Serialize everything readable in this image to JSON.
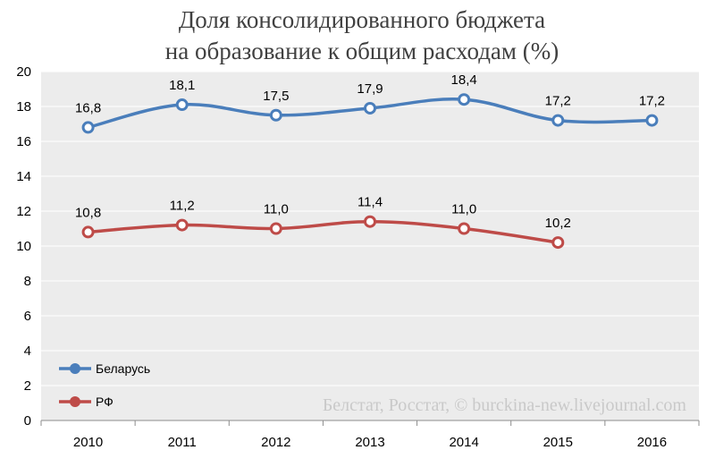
{
  "chart_data": {
    "type": "line",
    "title_lines": [
      "Доля консолидированного бюджета",
      "на образование к общим расходам (%)"
    ],
    "categories": [
      "2010",
      "2011",
      "2012",
      "2013",
      "2014",
      "2015",
      "2016"
    ],
    "series": [
      {
        "name": "Беларусь",
        "color": "#4A7EBB",
        "values": [
          16.8,
          18.1,
          17.5,
          17.9,
          18.4,
          17.2,
          17.2
        ],
        "labels": [
          "16,8",
          "18,1",
          "17,5",
          "17,9",
          "18,4",
          "17,2",
          "17,2"
        ]
      },
      {
        "name": "РФ",
        "color": "#BE4B48",
        "values": [
          10.8,
          11.2,
          11.0,
          11.4,
          11.0,
          10.2,
          null
        ],
        "labels": [
          "10,8",
          "11,2",
          "11,0",
          "11,4",
          "11,0",
          "10,2",
          null
        ]
      }
    ],
    "y_ticks": [
      "0",
      "2",
      "4",
      "6",
      "8",
      "10",
      "12",
      "14",
      "16",
      "18",
      "20"
    ],
    "ylim": [
      0,
      20
    ],
    "grid": true,
    "legend_position": "bottom-left",
    "plot_background": "#ececec",
    "watermark": "Белстат, Росстат, © burckina-new.livejournal.com"
  }
}
